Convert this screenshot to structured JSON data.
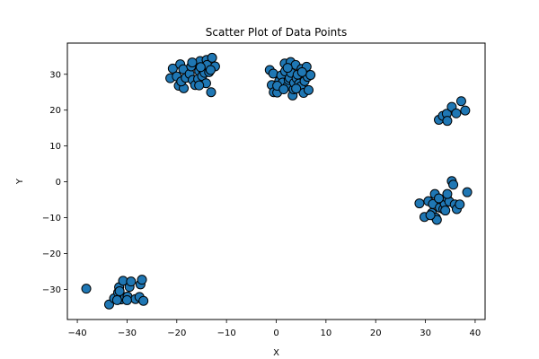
{
  "chart_data": {
    "type": "scatter",
    "title": "Scatter Plot of Data Points",
    "xlabel": "X",
    "ylabel": "Y",
    "xlim": [
      -42,
      42
    ],
    "ylim": [
      -38.4,
      38.7
    ],
    "xticks": [
      -40,
      -30,
      -20,
      -10,
      0,
      10,
      20,
      30,
      40
    ],
    "yticks": [
      -30,
      -20,
      -10,
      0,
      10,
      20,
      30
    ],
    "grid": false,
    "marker_color": "#1f77b4",
    "marker_edge_color": "#000000",
    "points": [
      [
        -20.8,
        31.6
      ],
      [
        -21.3,
        28.9
      ],
      [
        -20.0,
        29.4
      ],
      [
        -19.3,
        32.8
      ],
      [
        -18.7,
        31.4
      ],
      [
        -19.6,
        26.8
      ],
      [
        -18.6,
        26.1
      ],
      [
        -19.1,
        28.0
      ],
      [
        -18.2,
        29.0
      ],
      [
        -17.4,
        30.1
      ],
      [
        -17.1,
        32.2
      ],
      [
        -16.8,
        28.4
      ],
      [
        -16.3,
        27.0
      ],
      [
        -15.7,
        28.7
      ],
      [
        -15.5,
        30.9
      ],
      [
        -15.3,
        33.7
      ],
      [
        -14.8,
        31.4
      ],
      [
        -14.9,
        29.5
      ],
      [
        -14.4,
        30.4
      ],
      [
        -14.0,
        34.0
      ],
      [
        -13.9,
        32.6
      ],
      [
        -13.5,
        30.6
      ],
      [
        -12.9,
        34.6
      ],
      [
        -12.3,
        32.2
      ],
      [
        -14.1,
        27.5
      ],
      [
        -13.1,
        25.0
      ],
      [
        -16.9,
        33.3
      ],
      [
        -15.5,
        26.9
      ],
      [
        -13.2,
        31.2
      ],
      [
        -15.2,
        32.0
      ],
      [
        -1.3,
        31.2
      ],
      [
        -0.6,
        30.2
      ],
      [
        -0.9,
        27.0
      ],
      [
        -0.5,
        25.0
      ],
      [
        0.2,
        24.9
      ],
      [
        0.6,
        28.1
      ],
      [
        1.0,
        29.7
      ],
      [
        1.3,
        27.7
      ],
      [
        1.7,
        33.0
      ],
      [
        1.8,
        30.8
      ],
      [
        2.2,
        26.6
      ],
      [
        2.5,
        28.4
      ],
      [
        2.7,
        29.0
      ],
      [
        2.9,
        33.4
      ],
      [
        3.0,
        30.4
      ],
      [
        3.3,
        24.1
      ],
      [
        3.5,
        25.8
      ],
      [
        3.6,
        27.6
      ],
      [
        3.9,
        32.6
      ],
      [
        4.1,
        28.9
      ],
      [
        4.3,
        29.9
      ],
      [
        4.6,
        27.4
      ],
      [
        4.9,
        26.6
      ],
      [
        5.1,
        31.5
      ],
      [
        5.5,
        24.8
      ],
      [
        5.7,
        28.1
      ],
      [
        6.1,
        32.1
      ],
      [
        6.3,
        29.3
      ],
      [
        6.5,
        25.6
      ],
      [
        6.9,
        29.8
      ],
      [
        0.2,
        26.8
      ],
      [
        2.3,
        31.8
      ],
      [
        1.5,
        25.8
      ],
      [
        5.2,
        30.6
      ],
      [
        4.0,
        26.0
      ],
      [
        32.7,
        17.3
      ],
      [
        33.5,
        18.4
      ],
      [
        34.3,
        19.0
      ],
      [
        34.4,
        17.0
      ],
      [
        35.3,
        20.9
      ],
      [
        36.2,
        19.1
      ],
      [
        37.2,
        22.5
      ],
      [
        38.0,
        19.9
      ],
      [
        28.8,
        -6.0
      ],
      [
        29.8,
        -9.8
      ],
      [
        30.6,
        -5.4
      ],
      [
        31.3,
        -8.7
      ],
      [
        31.5,
        -6.2
      ],
      [
        31.9,
        -3.4
      ],
      [
        32.1,
        -10.0
      ],
      [
        32.3,
        -10.6
      ],
      [
        32.9,
        -7.2
      ],
      [
        33.3,
        -5.0
      ],
      [
        33.6,
        -7.6
      ],
      [
        33.9,
        -6.1
      ],
      [
        34.3,
        -4.4
      ],
      [
        34.8,
        -5.5
      ],
      [
        35.3,
        0.2
      ],
      [
        35.6,
        -0.8
      ],
      [
        35.9,
        -6.3
      ],
      [
        36.3,
        -7.6
      ],
      [
        36.9,
        -6.3
      ],
      [
        38.4,
        -2.9
      ],
      [
        32.7,
        -4.6
      ],
      [
        34.0,
        -8.0
      ],
      [
        31.0,
        -9.3
      ],
      [
        34.4,
        -3.4
      ],
      [
        -38.2,
        -29.8
      ],
      [
        -33.6,
        -34.2
      ],
      [
        -32.6,
        -32.5
      ],
      [
        -31.8,
        -30.9
      ],
      [
        -31.6,
        -29.4
      ],
      [
        -31.2,
        -32.8
      ],
      [
        -30.8,
        -27.6
      ],
      [
        -30.4,
        -32.2
      ],
      [
        -29.9,
        -32.0
      ],
      [
        -29.5,
        -29.3
      ],
      [
        -29.2,
        -27.8
      ],
      [
        -28.3,
        -32.7
      ],
      [
        -27.5,
        -32.1
      ],
      [
        -27.3,
        -28.6
      ],
      [
        -27.0,
        -27.3
      ],
      [
        -26.7,
        -33.2
      ],
      [
        -32.0,
        -33.0
      ],
      [
        -30.0,
        -33.0
      ],
      [
        -31.5,
        -30.5
      ]
    ]
  }
}
